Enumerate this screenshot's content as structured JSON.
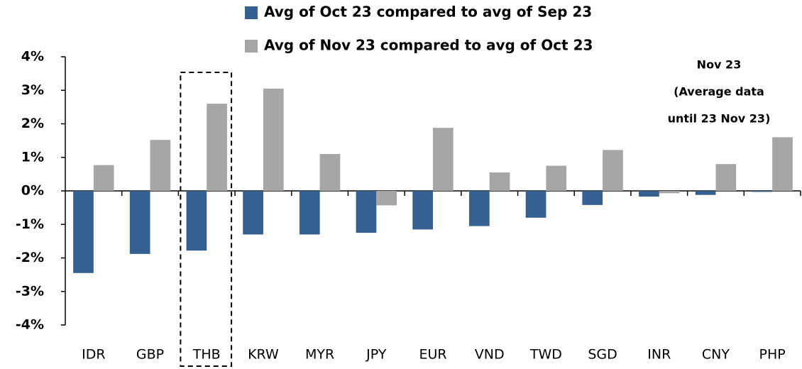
{
  "chart_data": {
    "type": "bar",
    "categories": [
      "IDR",
      "GBP",
      "THB",
      "KRW",
      "MYR",
      "JPY",
      "EUR",
      "VND",
      "TWD",
      "SGD",
      "INR",
      "CNY",
      "PHP"
    ],
    "series": [
      {
        "name": "Avg of Oct 23 compared to avg of Sep 23",
        "color": "#376092",
        "values": [
          -2.45,
          -1.88,
          -1.78,
          -1.3,
          -1.3,
          -1.25,
          -1.15,
          -1.05,
          -0.8,
          -0.42,
          -0.17,
          -0.12,
          -0.03
        ]
      },
      {
        "name": "Avg of Nov 23 compared to avg of Oct 23",
        "color": "#a6a6a6",
        "values": [
          0.77,
          1.52,
          2.6,
          3.05,
          1.1,
          -0.43,
          1.88,
          0.55,
          0.75,
          1.22,
          -0.07,
          0.8,
          1.6
        ]
      }
    ],
    "ylim": [
      -4,
      4
    ],
    "yticks": [
      {
        "value": -4,
        "label": "-4%"
      },
      {
        "value": -3,
        "label": "-3%"
      },
      {
        "value": -2,
        "label": "-2%"
      },
      {
        "value": -1,
        "label": "-1%"
      },
      {
        "value": 0,
        "label": "0%"
      },
      {
        "value": 1,
        "label": "1%"
      },
      {
        "value": 2,
        "label": "2%"
      },
      {
        "value": 3,
        "label": "3%"
      },
      {
        "value": 4,
        "label": "4%"
      }
    ],
    "annotation": [
      "Nov 23",
      "(Average data",
      "until 23 Nov 23)"
    ],
    "highlight": "THB"
  }
}
